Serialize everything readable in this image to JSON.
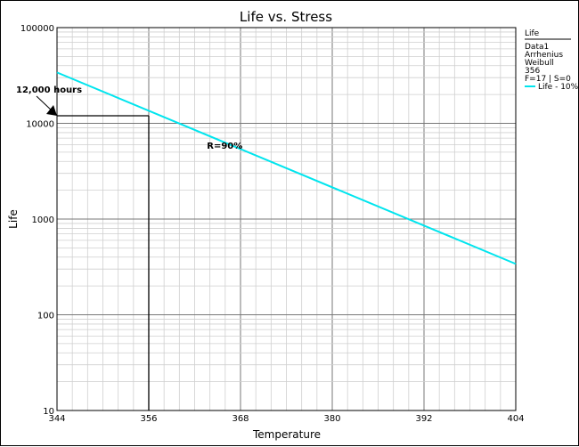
{
  "chart_data": {
    "type": "line",
    "title": "Life vs. Stress",
    "xlabel": "Temperature",
    "ylabel": "Life",
    "xlim": [
      344,
      404
    ],
    "ylim": [
      10,
      100000
    ],
    "yscale": "log",
    "grid": true,
    "x_ticks": [
      "344",
      "356",
      "368",
      "380",
      "392",
      "404"
    ],
    "y_ticks": [
      "10",
      "100",
      "1000",
      "10000",
      "100000"
    ],
    "series": [
      {
        "name": "Life - 10%",
        "color": "#00e5ee",
        "x": [
          344,
          404
        ],
        "y": [
          34000,
          340
        ]
      }
    ],
    "legend": {
      "position": "top-right",
      "title": "Life",
      "lines": [
        "Data1",
        "Arrhenius",
        "Weibull",
        "356",
        "F=17 | S=0"
      ],
      "series_label": "Life - 10%"
    },
    "annotations": [
      {
        "text": "12,000 hours",
        "type": "arrow",
        "x": 344,
        "y": 12000
      },
      {
        "text": "R=90%",
        "type": "label",
        "x": 365,
        "y": 5800
      }
    ],
    "reference_lines": {
      "x": 356,
      "y": 12000
    }
  }
}
